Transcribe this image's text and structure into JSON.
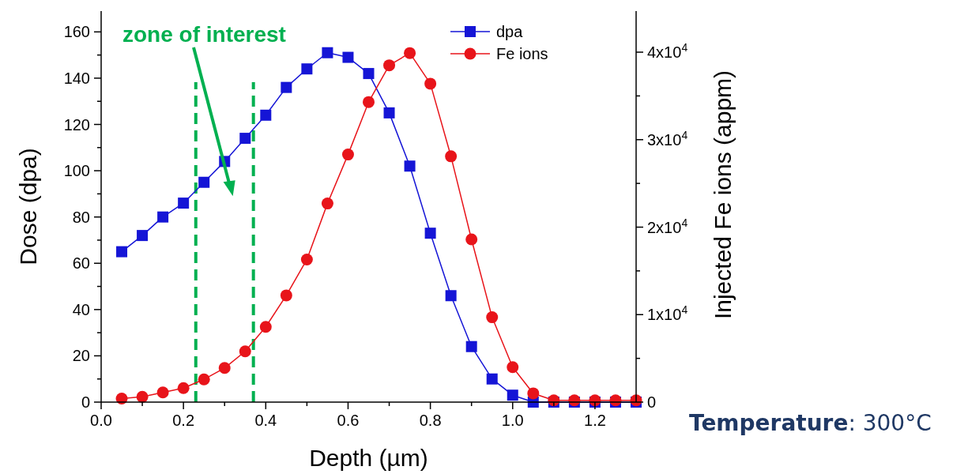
{
  "chart_data": {
    "type": "line",
    "xlabel": "Depth (µm)",
    "ylabel": "Dose (dpa)",
    "y2label": "Injected Fe ions (appm)",
    "x": [
      0.05,
      0.1,
      0.15,
      0.2,
      0.25,
      0.3,
      0.35,
      0.4,
      0.45,
      0.5,
      0.55,
      0.6,
      0.65,
      0.7,
      0.75,
      0.8,
      0.85,
      0.9,
      0.95,
      1.0,
      1.05,
      1.1,
      1.15,
      1.2,
      1.25,
      1.3
    ],
    "series": [
      {
        "name": "dpa",
        "color": "#1515d6",
        "marker": "square",
        "values": [
          65,
          72,
          80,
          86,
          95,
          104,
          114,
          124,
          136,
          144,
          151,
          149,
          142,
          125,
          102,
          73,
          46,
          24,
          10,
          3,
          0,
          0,
          0,
          0,
          0,
          0
        ]
      },
      {
        "name": "Fe ions",
        "color": "#e8141a",
        "marker": "circle",
        "axis": "y2",
        "values": [
          400,
          600,
          1100,
          1600,
          2600,
          3900,
          5800,
          8600,
          12200,
          16300,
          22700,
          28300,
          34300,
          38500,
          39900,
          36400,
          28100,
          18600,
          9700,
          4000,
          1000,
          200,
          200,
          200,
          200,
          200
        ]
      }
    ],
    "xlim": [
      0,
      1.3
    ],
    "xticks": [
      {
        "value": 0,
        "label": "0.0"
      },
      {
        "value": 0.1,
        "label": null
      },
      {
        "value": 0.2,
        "label": "0.2"
      },
      {
        "value": 0.3,
        "label": null
      },
      {
        "value": 0.4,
        "label": "0.4"
      },
      {
        "value": 0.5,
        "label": null
      },
      {
        "value": 0.6,
        "label": "0.6"
      },
      {
        "value": 0.7,
        "label": null
      },
      {
        "value": 0.8,
        "label": "0.8"
      },
      {
        "value": 0.9,
        "label": null
      },
      {
        "value": 1.0,
        "label": "1.0"
      },
      {
        "value": 1.1,
        "label": null
      },
      {
        "value": 1.2,
        "label": "1.2"
      }
    ],
    "ylim": [
      0,
      169
    ],
    "yticks": [
      0,
      {
        "value": 10,
        "label": null
      },
      20,
      {
        "value": 30,
        "label": null
      },
      40,
      {
        "value": 50,
        "label": null
      },
      60,
      {
        "value": 70,
        "label": null
      },
      80,
      {
        "value": 90,
        "label": null
      },
      100,
      {
        "value": 110,
        "label": null
      },
      120,
      {
        "value": 130,
        "label": null
      },
      140,
      {
        "value": 150,
        "label": null
      },
      160
    ],
    "y2lim": [
      0,
      44700
    ],
    "y2ticks": [
      0,
      {
        "value": 5000,
        "label": null
      },
      {
        "value": 10000,
        "label": "1x10$^{4}$"
      },
      {
        "value": 15000,
        "label": null
      },
      {
        "value": 20000,
        "label": "2x10$^{4}$"
      },
      {
        "value": 25000,
        "label": null
      },
      {
        "value": 30000,
        "label": "3x10$^{4}$"
      },
      {
        "value": 35000,
        "label": null
      },
      {
        "value": 40000,
        "label": "4x10$^{4}$"
      }
    ],
    "ref_lines": [
      {
        "axis": "x",
        "value": 0.23,
        "color": "#00b050",
        "line_style": "dashed"
      },
      {
        "axis": "x",
        "value": 0.37,
        "color": "#00b050",
        "line_style": "dashed"
      }
    ],
    "annotations": [
      "zone of interest",
      "Temperature: 300°C"
    ],
    "legend": "top right",
    "grid": false,
    "line_style": "solid"
  }
}
